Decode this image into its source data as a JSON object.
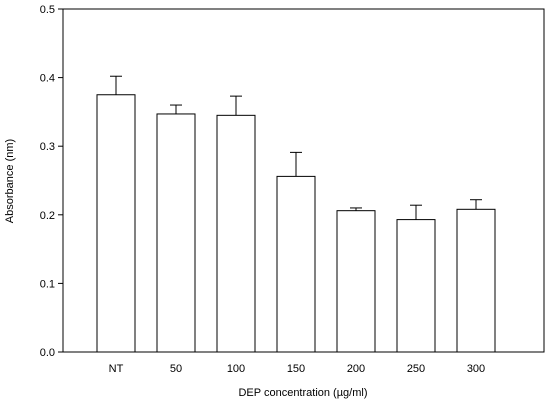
{
  "chart_data": {
    "type": "bar",
    "categories": [
      "NT",
      "50",
      "100",
      "150",
      "200",
      "250",
      "300"
    ],
    "values": [
      0.375,
      0.347,
      0.345,
      0.256,
      0.206,
      0.193,
      0.208
    ],
    "error_upper": [
      0.402,
      0.36,
      0.373,
      0.291,
      0.21,
      0.214,
      0.222
    ],
    "xlabel": "DEP concentration (µg/ml)",
    "ylabel": "Absorbance (nm)",
    "ylim": [
      0,
      0.5
    ],
    "yticks": [
      "0.0",
      "0.1",
      "0.2",
      "0.3",
      "0.4",
      "0.5"
    ],
    "bar_fill": "#ffffff",
    "bar_stroke": "#000000",
    "grid": false,
    "legend": "none"
  }
}
